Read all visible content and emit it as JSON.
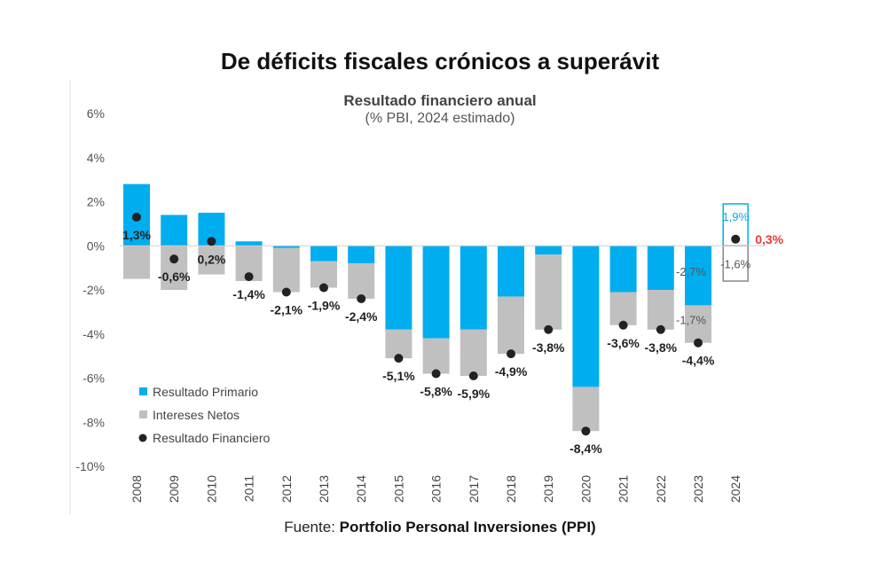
{
  "page": {
    "source_prefix": "Fuente: ",
    "source_name": "Portfolio Personal Inversiones (PPI)"
  },
  "chart_data": {
    "type": "bar",
    "title": "De déficits fiscales crónicos a superávit",
    "subtitle": "Resultado financiero anual",
    "subtitle2": "(% PBI, 2024 estimado)",
    "xlabel": "",
    "ylabel": "",
    "ylim": [
      -10,
      6
    ],
    "yticks": [
      6,
      4,
      2,
      0,
      -2,
      -4,
      -6,
      -8,
      -10
    ],
    "ytick_labels": [
      "6%",
      "4%",
      "2%",
      "0%",
      "-2%",
      "-4%",
      "-6%",
      "-8%",
      "-10%"
    ],
    "categories": [
      "2008",
      "2009",
      "2010",
      "2011",
      "2012",
      "2013",
      "2014",
      "2015",
      "2016",
      "2017",
      "2018",
      "2019",
      "2020",
      "2021",
      "2022",
      "2023",
      "2024"
    ],
    "series": [
      {
        "name": "Resultado Primario",
        "color": "#00AEEF",
        "values": [
          2.8,
          1.4,
          1.5,
          0.2,
          -0.1,
          -0.7,
          -0.8,
          -3.8,
          -4.2,
          -3.8,
          -2.3,
          -0.4,
          -6.4,
          -2.1,
          -2.0,
          -2.7,
          1.9
        ]
      },
      {
        "name": "Intereses Netos",
        "color": "#C0C0C0",
        "values": [
          -1.5,
          -2.0,
          -1.3,
          -1.6,
          -2.0,
          -1.2,
          -1.6,
          -1.3,
          -1.6,
          -2.1,
          -2.6,
          -3.4,
          -2.0,
          -1.5,
          -1.8,
          -1.7,
          -1.6
        ]
      },
      {
        "name": "Resultado Financiero",
        "color": "#222222",
        "values": [
          1.3,
          -0.6,
          0.2,
          -1.4,
          -2.1,
          -1.9,
          -2.4,
          -5.1,
          -5.8,
          -5.9,
          -4.9,
          -3.8,
          -8.4,
          -3.6,
          -3.8,
          -4.4,
          0.3
        ]
      }
    ],
    "data_labels": [
      "1,3%",
      "-0,6%",
      "0,2%",
      "-1,4%",
      "-2,1%",
      "-1,9%",
      "-2,4%",
      "-5,1%",
      "-5,8%",
      "-5,9%",
      "-4,9%",
      "-3,8%",
      "-8,4%",
      "-3,6%",
      "-3,8%",
      "-4,4%",
      "0,3%"
    ],
    "annotations": {
      "primary_2023": "-2,7%",
      "interest_2023": "-1,7%",
      "primary_2024": "1,9%",
      "interest_2024": "-1,6%",
      "highlight_color": "#E53935",
      "outline_2024_primary_color": "#00AEEF",
      "outline_2024_interest_color": "#888888"
    },
    "legend": "bottom-left"
  }
}
